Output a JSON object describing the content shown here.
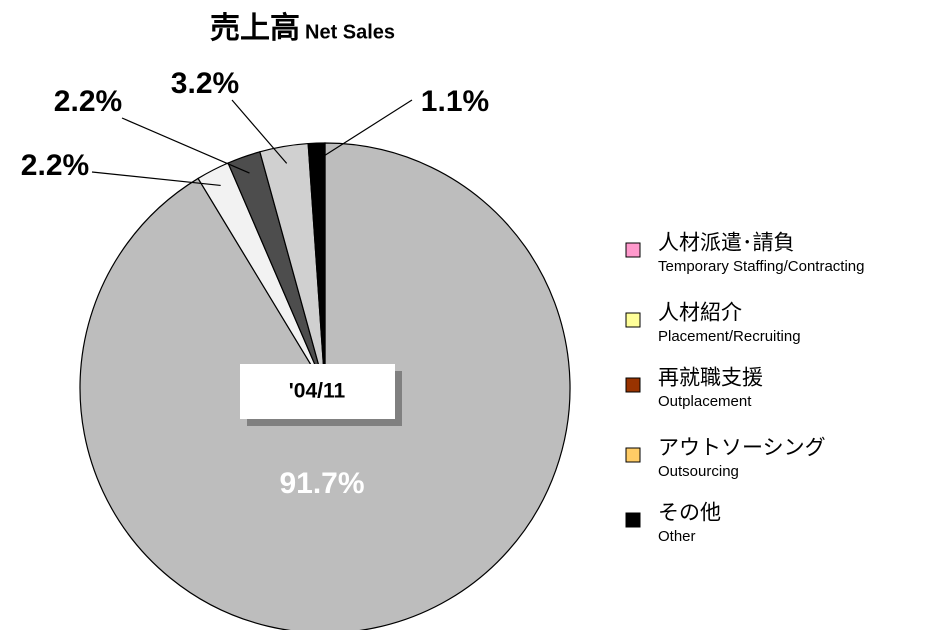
{
  "chart_data": {
    "type": "pie",
    "title": "売上高",
    "title_en": "Net Sales",
    "period": "'04/11",
    "categories": [
      "Temporary Staffing/Contracting",
      "Placement/Recruiting",
      "Outplacement",
      "Outsourcing",
      "Other"
    ],
    "categories_ja": [
      "人材派遣･請負",
      "人材紹介",
      "再就職支援",
      "アウトソーシング",
      "その他"
    ],
    "values": [
      91.7,
      2.2,
      2.2,
      3.2,
      1.1
    ],
    "value_labels": [
      "91.7%",
      "2.2%",
      "2.2%",
      "3.2%",
      "1.1%"
    ],
    "colors": [
      "#bdbdbd",
      "#f2f2f2",
      "#4d4d4d",
      "#d0d0d0",
      "#000000"
    ],
    "legend_colors": [
      "#ff99cc",
      "#ffff99",
      "#993300",
      "#ffcc66",
      "#000000"
    ],
    "legend": "right"
  }
}
